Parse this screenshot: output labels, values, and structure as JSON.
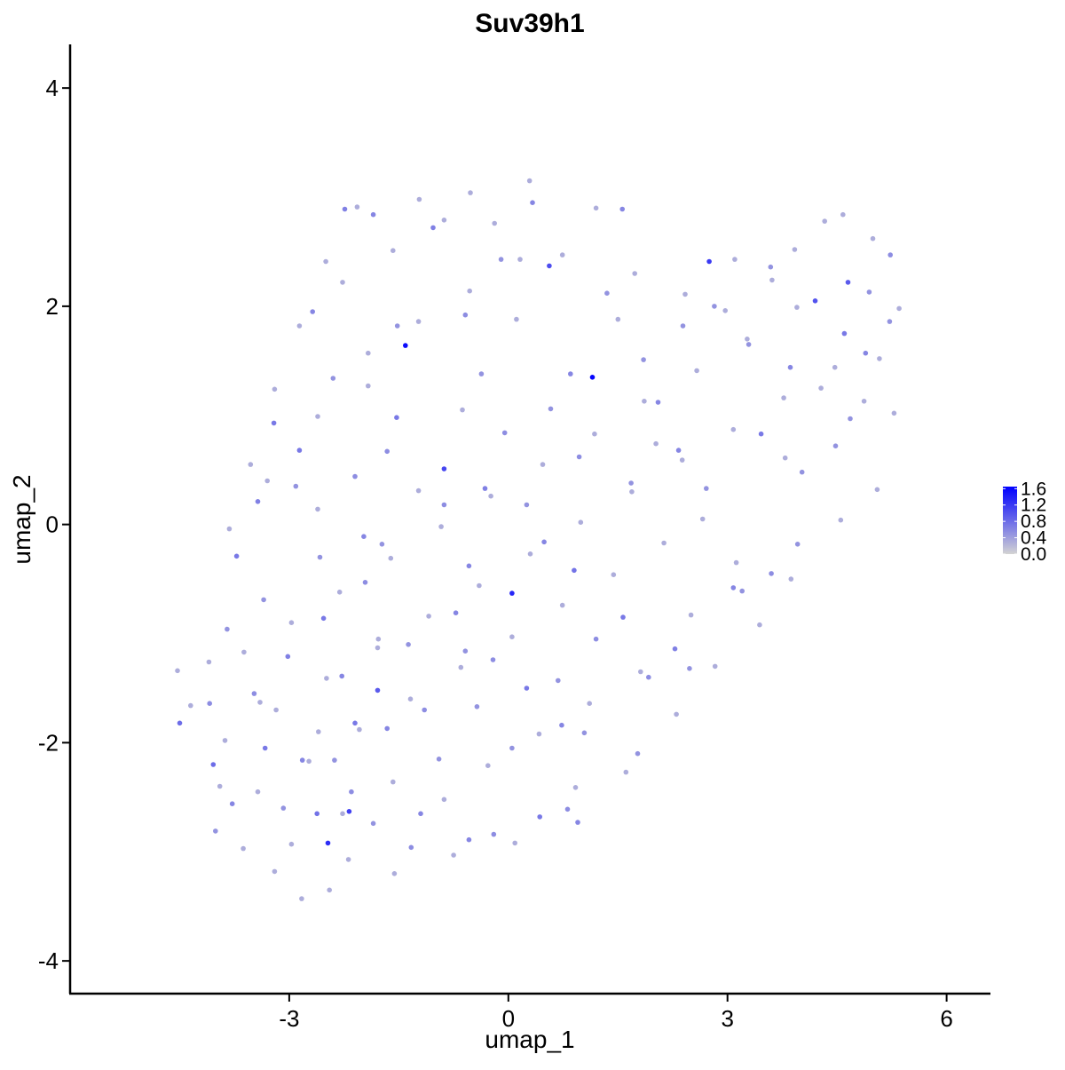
{
  "chart_data": {
    "type": "scatter",
    "title": "Suv39h1",
    "xlabel": "umap_1",
    "ylabel": "umap_2",
    "xlim": [
      -6,
      6.6
    ],
    "ylim": [
      -4.3,
      4.4
    ],
    "x_ticks": [
      -3,
      0,
      3,
      6
    ],
    "y_ticks": [
      -4,
      -2,
      0,
      2,
      4
    ],
    "x_tick_labels": [
      "-3",
      "0",
      "3",
      "6"
    ],
    "y_tick_labels": [
      "-4",
      "-2",
      "0",
      "2",
      "4"
    ],
    "grid": false,
    "legend": {
      "placement": "right",
      "type": "colorbar",
      "min": 0.0,
      "max": 1.65,
      "ticks": [
        0.0,
        0.4,
        0.8,
        1.2,
        1.6
      ],
      "tick_labels": [
        "0.0",
        "0.4",
        "0.8",
        "1.2",
        "1.6"
      ]
    },
    "colors": {
      "low": "#d3d3d3",
      "high": "#0000ff"
    },
    "points": [
      [
        -1.41,
        1.64,
        1.55
      ],
      [
        1.15,
        1.35,
        1.6
      ],
      [
        0.05,
        -0.63,
        1.35
      ],
      [
        -2.47,
        -2.92,
        1.3
      ],
      [
        2.75,
        2.41,
        1.2
      ],
      [
        0.56,
        2.37,
        1.05
      ],
      [
        -0.88,
        0.51,
        1.1
      ],
      [
        -2.18,
        -2.63,
        1.15
      ],
      [
        -1.79,
        -1.52,
        0.95
      ],
      [
        4.2,
        2.05,
        1.0
      ],
      [
        4.65,
        2.22,
        0.95
      ],
      [
        -4.5,
        -1.82,
        0.8
      ],
      [
        -4.04,
        -2.2,
        0.8
      ],
      [
        -2.62,
        -2.65,
        0.75
      ],
      [
        -3.21,
        0.93,
        0.7
      ],
      [
        -2.86,
        0.68,
        0.7
      ],
      [
        -3.43,
        0.21,
        0.65
      ],
      [
        -2.53,
        -0.86,
        0.7
      ],
      [
        -1.98,
        -0.11,
        0.6
      ],
      [
        -1.53,
        0.98,
        0.7
      ],
      [
        -0.32,
        0.33,
        0.65
      ],
      [
        0.49,
        -0.16,
        0.6
      ],
      [
        0.9,
        -0.42,
        0.75
      ],
      [
        1.57,
        -0.85,
        0.7
      ],
      [
        2.28,
        -1.14,
        0.65
      ],
      [
        3.46,
        0.83,
        0.7
      ],
      [
        4.6,
        1.75,
        0.7
      ],
      [
        -3.02,
        -1.21,
        0.65
      ],
      [
        -2.1,
        -1.82,
        0.7
      ],
      [
        -1.2,
        -2.65,
        0.6
      ],
      [
        -0.54,
        -2.89,
        0.6
      ],
      [
        0.43,
        -2.68,
        0.7
      ],
      [
        0.95,
        -2.73,
        0.6
      ],
      [
        -3.33,
        -2.05,
        0.7
      ],
      [
        -2.28,
        -1.39,
        0.6
      ],
      [
        -1.66,
        -1.87,
        0.6
      ],
      [
        -0.72,
        -0.81,
        0.6
      ],
      [
        0.25,
        -1.5,
        0.7
      ],
      [
        1.2,
        -1.05,
        0.55
      ],
      [
        -3.72,
        -0.29,
        0.7
      ],
      [
        -2.24,
        2.89,
        0.65
      ],
      [
        -1.85,
        2.84,
        0.6
      ],
      [
        -1.03,
        2.72,
        0.65
      ],
      [
        0.33,
        2.95,
        0.6
      ],
      [
        1.56,
        2.89,
        0.6
      ],
      [
        -0.59,
        1.92,
        0.55
      ],
      [
        0.85,
        1.38,
        0.6
      ],
      [
        2.05,
        1.12,
        0.6
      ],
      [
        -2.68,
        1.95,
        0.6
      ],
      [
        -2.1,
        0.44,
        0.55
      ],
      [
        -0.05,
        0.84,
        0.55
      ],
      [
        0.97,
        0.62,
        0.55
      ],
      [
        2.33,
        0.68,
        0.6
      ],
      [
        3.86,
        1.44,
        0.6
      ],
      [
        4.89,
        1.57,
        0.6
      ],
      [
        5.23,
        2.47,
        0.55
      ],
      [
        -1.66,
        0.67,
        0.55
      ],
      [
        -0.54,
        -0.38,
        0.6
      ],
      [
        0.73,
        -1.84,
        0.6
      ],
      [
        1.92,
        -1.4,
        0.55
      ],
      [
        3.08,
        -0.58,
        0.6
      ],
      [
        3.6,
        -0.45,
        0.55
      ],
      [
        -2.82,
        -2.16,
        0.6
      ],
      [
        -3.78,
        -2.56,
        0.6
      ],
      [
        -4.09,
        -1.64,
        0.55
      ],
      [
        -3.48,
        -1.55,
        0.55
      ],
      [
        -2.15,
        -2.45,
        0.55
      ],
      [
        -1.33,
        -2.96,
        0.55
      ],
      [
        -0.2,
        -2.84,
        0.55
      ],
      [
        0.81,
        -2.61,
        0.55
      ],
      [
        -1.15,
        -1.7,
        0.55
      ],
      [
        -0.21,
        -1.24,
        0.55
      ],
      [
        -1.96,
        -0.53,
        0.55
      ],
      [
        -0.88,
        0.18,
        0.55
      ],
      [
        0.25,
        0.18,
        0.5
      ],
      [
        1.68,
        0.38,
        0.5
      ],
      [
        2.71,
        0.33,
        0.5
      ],
      [
        4.02,
        0.48,
        0.5
      ],
      [
        4.68,
        0.97,
        0.5
      ],
      [
        -2.4,
        1.34,
        0.5
      ],
      [
        -1.52,
        1.82,
        0.5
      ],
      [
        -0.1,
        2.43,
        0.5
      ],
      [
        1.35,
        2.12,
        0.5
      ],
      [
        2.82,
        2.0,
        0.5
      ],
      [
        3.59,
        2.36,
        0.5
      ],
      [
        4.94,
        2.13,
        0.5
      ],
      [
        5.22,
        1.86,
        0.5
      ],
      [
        4.48,
        0.72,
        0.5
      ],
      [
        3.96,
        -0.18,
        0.5
      ],
      [
        3.2,
        -0.61,
        0.5
      ],
      [
        2.48,
        -1.32,
        0.5
      ],
      [
        1.77,
        -2.1,
        0.5
      ],
      [
        0.68,
        -1.43,
        0.5
      ],
      [
        -0.43,
        -1.67,
        0.5
      ],
      [
        -1.37,
        -1.1,
        0.5
      ],
      [
        -2.58,
        -0.3,
        0.5
      ],
      [
        -3.35,
        -0.69,
        0.5
      ],
      [
        -3.85,
        -0.96,
        0.5
      ],
      [
        -4.01,
        -2.81,
        0.5
      ],
      [
        -3.08,
        -2.6,
        0.5
      ],
      [
        -2.38,
        -2.16,
        0.5
      ],
      [
        -1.85,
        -2.74,
        0.5
      ],
      [
        -0.95,
        -2.15,
        0.5
      ],
      [
        0.05,
        -2.05,
        0.5
      ],
      [
        1.04,
        -1.91,
        0.5
      ],
      [
        -0.59,
        -1.16,
        0.5
      ],
      [
        -1.73,
        -0.18,
        0.5
      ],
      [
        -2.91,
        0.35,
        0.5
      ],
      [
        -0.37,
        1.38,
        0.5
      ],
      [
        0.58,
        1.06,
        0.5
      ],
      [
        1.85,
        1.51,
        0.5
      ],
      [
        2.39,
        1.82,
        0.5
      ],
      [
        3.29,
        1.65,
        0.5
      ],
      [
        -4.53,
        -1.34,
        0.3
      ],
      [
        -4.35,
        -1.66,
        0.3
      ],
      [
        -4.1,
        -1.26,
        0.3
      ],
      [
        -3.95,
        -2.4,
        0.3
      ],
      [
        -3.63,
        -2.97,
        0.3
      ],
      [
        -3.2,
        -3.18,
        0.3
      ],
      [
        -2.83,
        -3.43,
        0.3
      ],
      [
        -2.45,
        -3.35,
        0.3
      ],
      [
        -2.19,
        -3.07,
        0.3
      ],
      [
        -1.56,
        -3.2,
        0.3
      ],
      [
        -0.75,
        -3.03,
        0.3
      ],
      [
        0.09,
        -2.92,
        0.3
      ],
      [
        0.92,
        -2.41,
        0.3
      ],
      [
        1.61,
        -2.27,
        0.3
      ],
      [
        2.3,
        -1.74,
        0.3
      ],
      [
        2.83,
        -1.3,
        0.3
      ],
      [
        3.44,
        -0.92,
        0.3
      ],
      [
        3.87,
        -0.5,
        0.3
      ],
      [
        4.55,
        0.04,
        0.3
      ],
      [
        5.05,
        0.32,
        0.3
      ],
      [
        5.28,
        1.02,
        0.3
      ],
      [
        5.35,
        1.98,
        0.3
      ],
      [
        4.58,
        2.84,
        0.3
      ],
      [
        3.92,
        2.52,
        0.3
      ],
      [
        3.1,
        2.43,
        0.3
      ],
      [
        2.42,
        2.11,
        0.3
      ],
      [
        1.73,
        2.3,
        0.3
      ],
      [
        1.2,
        2.9,
        0.3
      ],
      [
        0.29,
        3.15,
        0.3
      ],
      [
        -0.52,
        3.04,
        0.3
      ],
      [
        -1.22,
        2.98,
        0.3
      ],
      [
        -2.07,
        2.91,
        0.3
      ],
      [
        -2.5,
        2.41,
        0.3
      ],
      [
        -2.86,
        1.82,
        0.3
      ],
      [
        -3.2,
        1.24,
        0.3
      ],
      [
        -3.53,
        0.55,
        0.3
      ],
      [
        -3.82,
        -0.04,
        0.3
      ],
      [
        -3.4,
        -1.63,
        0.3
      ],
      [
        -2.6,
        -1.9,
        0.3
      ],
      [
        -1.78,
        -1.05,
        0.3
      ],
      [
        -1.23,
        0.31,
        0.3
      ],
      [
        -0.63,
        1.05,
        0.3
      ],
      [
        0.11,
        1.88,
        0.3
      ],
      [
        0.74,
        2.47,
        0.3
      ],
      [
        1.5,
        1.88,
        0.3
      ],
      [
        2.02,
        0.74,
        0.3
      ],
      [
        2.66,
        0.05,
        0.3
      ],
      [
        3.12,
        -0.35,
        0.3
      ],
      [
        3.79,
        0.61,
        0.3
      ],
      [
        4.28,
        1.25,
        0.3
      ],
      [
        4.87,
        1.13,
        0.3
      ],
      [
        -3.62,
        -1.17,
        0.3
      ],
      [
        -2.97,
        -0.9,
        0.3
      ],
      [
        -2.31,
        -0.62,
        0.3
      ],
      [
        -1.61,
        -0.31,
        0.3
      ],
      [
        -0.92,
        -0.02,
        0.3
      ],
      [
        -0.24,
        0.26,
        0.3
      ],
      [
        0.47,
        0.55,
        0.3
      ],
      [
        1.18,
        0.83,
        0.3
      ],
      [
        1.86,
        1.13,
        0.3
      ],
      [
        2.58,
        1.41,
        0.3
      ],
      [
        3.27,
        1.7,
        0.3
      ],
      [
        3.95,
        1.99,
        0.3
      ],
      [
        -3.88,
        -1.98,
        0.3
      ],
      [
        -3.18,
        -1.7,
        0.3
      ],
      [
        -2.49,
        -1.41,
        0.3
      ],
      [
        -1.79,
        -1.13,
        0.3
      ],
      [
        -1.09,
        -0.84,
        0.3
      ],
      [
        -0.4,
        -0.56,
        0.3
      ],
      [
        0.3,
        -0.27,
        0.3
      ],
      [
        0.99,
        0.02,
        0.3
      ],
      [
        1.69,
        0.3,
        0.3
      ],
      [
        2.38,
        0.59,
        0.3
      ],
      [
        3.08,
        0.87,
        0.3
      ],
      [
        3.77,
        1.16,
        0.3
      ],
      [
        4.47,
        1.44,
        0.3
      ],
      [
        -3.43,
        -2.45,
        0.3
      ],
      [
        -2.73,
        -2.17,
        0.3
      ],
      [
        -2.04,
        -1.88,
        0.3
      ],
      [
        -1.34,
        -1.6,
        0.3
      ],
      [
        -0.65,
        -1.31,
        0.3
      ],
      [
        0.05,
        -1.03,
        0.3
      ],
      [
        0.74,
        -0.74,
        0.3
      ],
      [
        1.44,
        -0.46,
        0.3
      ],
      [
        2.13,
        -0.17,
        0.3
      ],
      [
        -2.27,
        2.22,
        0.3
      ],
      [
        -1.58,
        2.51,
        0.3
      ],
      [
        -0.88,
        2.79,
        0.3
      ],
      [
        -0.19,
        2.76,
        0.3
      ],
      [
        -1.92,
        1.57,
        0.3
      ],
      [
        -1.23,
        1.86,
        0.3
      ],
      [
        -0.53,
        2.14,
        0.3
      ],
      [
        0.16,
        2.43,
        0.3
      ],
      [
        -2.61,
        0.99,
        0.3
      ],
      [
        -1.92,
        1.27,
        0.3
      ],
      [
        -3.3,
        0.4,
        0.3
      ],
      [
        -2.61,
        0.14,
        0.3
      ],
      [
        -0.28,
        -2.21,
        0.3
      ],
      [
        0.42,
        -1.92,
        0.3
      ],
      [
        1.11,
        -1.64,
        0.3
      ],
      [
        1.81,
        -1.35,
        0.3
      ],
      [
        2.5,
        -0.83,
        0.3
      ],
      [
        -2.97,
        -2.93,
        0.3
      ],
      [
        -2.27,
        -2.65,
        0.3
      ],
      [
        -1.58,
        -2.36,
        0.3
      ],
      [
        -0.88,
        -2.52,
        0.3
      ],
      [
        4.99,
        2.62,
        0.3
      ],
      [
        4.33,
        2.78,
        0.3
      ],
      [
        3.61,
        2.24,
        0.3
      ],
      [
        2.97,
        1.96,
        0.3
      ],
      [
        5.08,
        1.52,
        0.3
      ]
    ]
  }
}
